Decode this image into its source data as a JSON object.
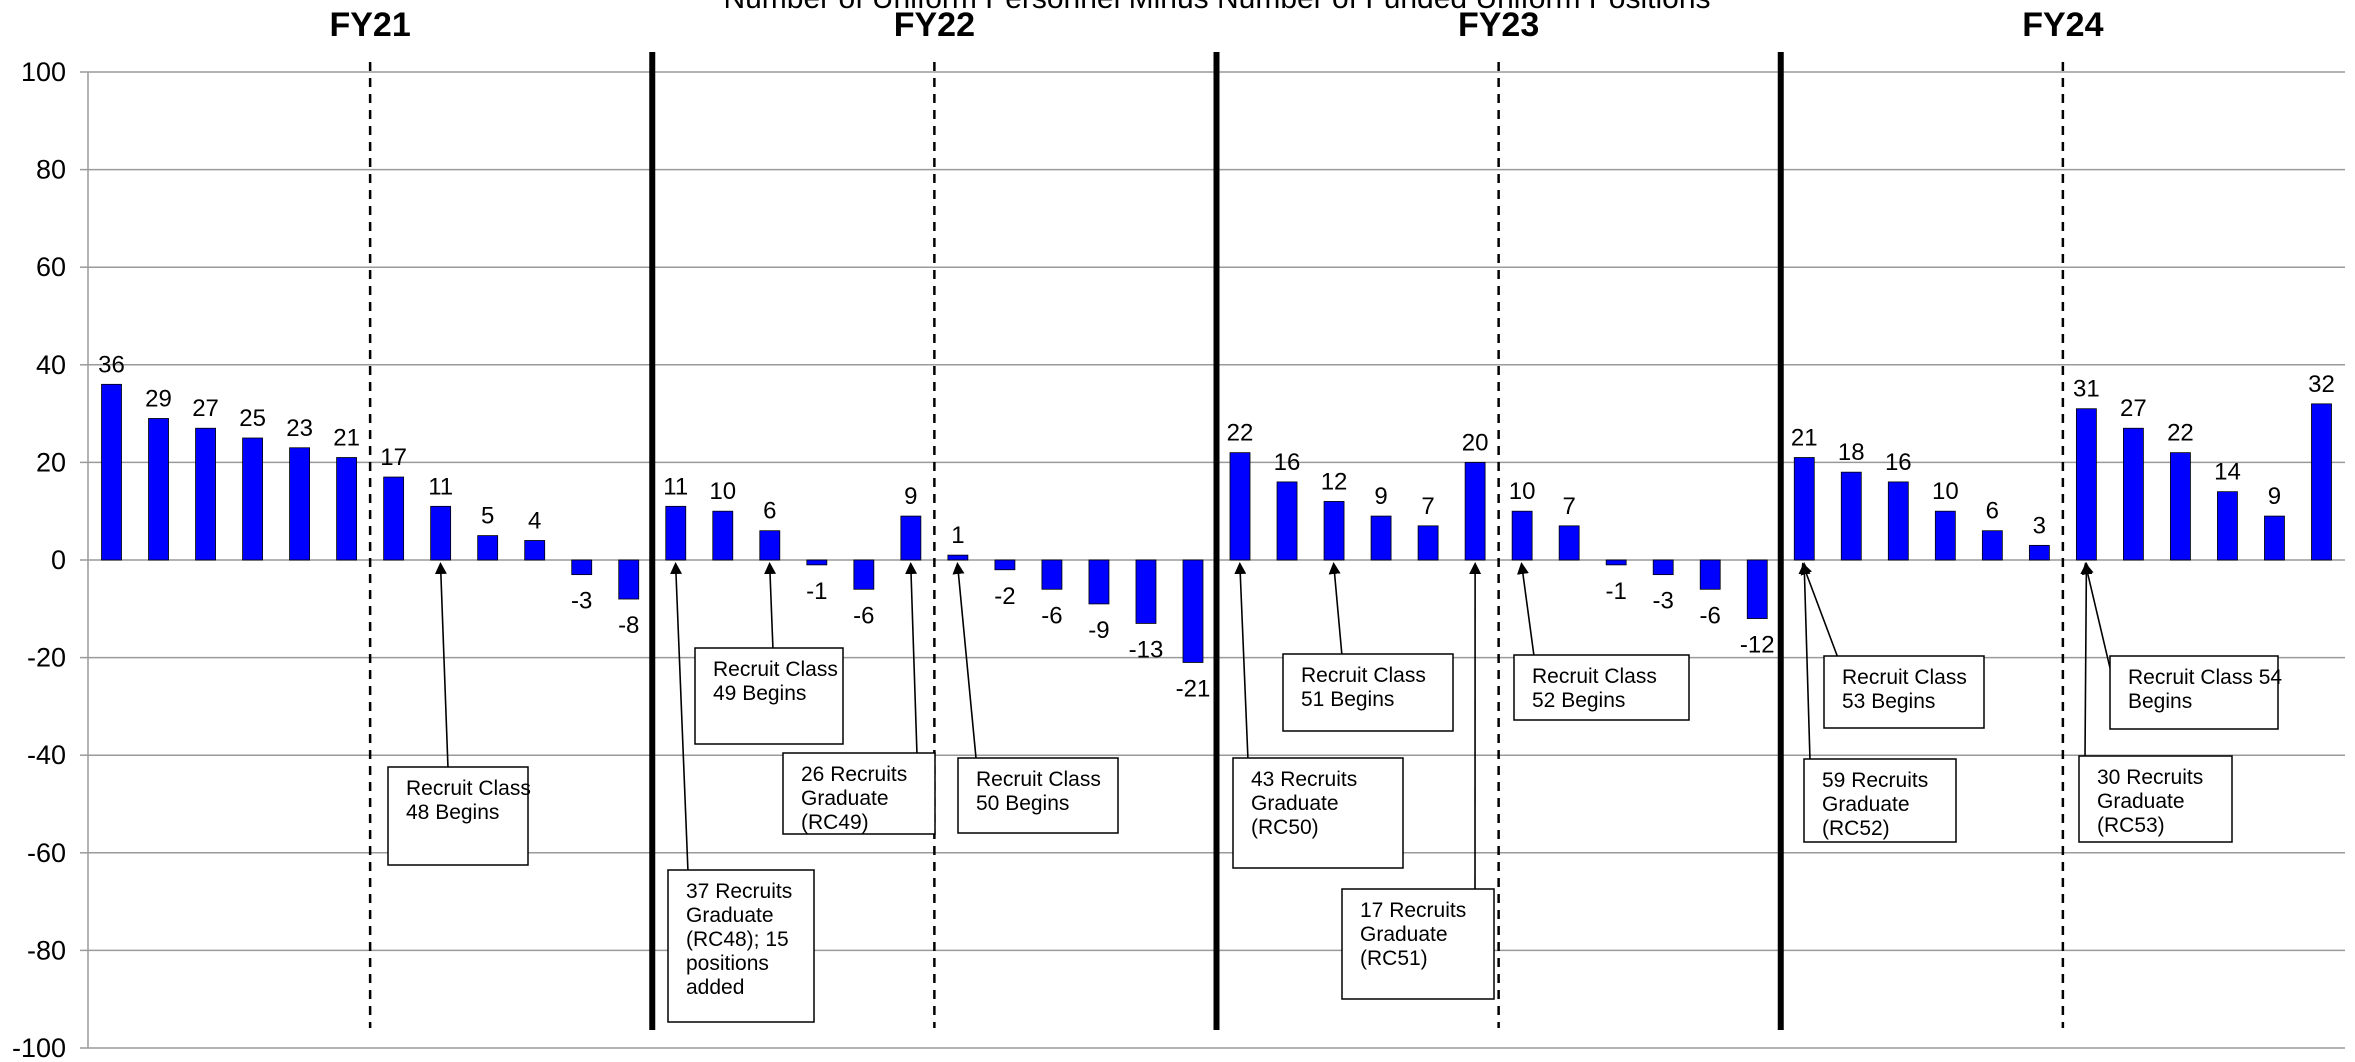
{
  "chart_data": {
    "type": "bar",
    "title": "Number of Uniform Personnel Minus Number of Funded Uniform Positions",
    "xlabel": "",
    "ylabel": "",
    "ylim": [
      -100,
      100
    ],
    "yticks": [
      -100,
      -80,
      -60,
      -40,
      -20,
      0,
      20,
      40,
      60,
      80,
      100
    ],
    "grid": true,
    "bar_color": "#0000ff",
    "fiscal_years": [
      "FY21",
      "FY22",
      "FY23",
      "FY24"
    ],
    "values": [
      36,
      29,
      27,
      25,
      23,
      21,
      17,
      11,
      5,
      4,
      -3,
      -8,
      11,
      10,
      6,
      -1,
      -6,
      9,
      1,
      -2,
      -6,
      -9,
      -13,
      -21,
      22,
      16,
      12,
      9,
      7,
      20,
      10,
      7,
      -1,
      -3,
      -6,
      -12,
      21,
      18,
      16,
      10,
      6,
      3,
      31,
      27,
      22,
      14,
      9,
      32
    ],
    "annotations": [
      {
        "lines": [
          "Recruit Class",
          "48 Begins"
        ],
        "bar_index": 7
      },
      {
        "lines": [
          "37 Recruits",
          "Graduate",
          "(RC48); 15",
          "positions",
          "added"
        ],
        "bar_index": 12
      },
      {
        "lines": [
          "Recruit Class",
          "49 Begins"
        ],
        "bar_index": 14
      },
      {
        "lines": [
          "26 Recruits",
          "Graduate",
          "(RC49)"
        ],
        "bar_index": 17
      },
      {
        "lines": [
          "Recruit Class",
          "50 Begins"
        ],
        "bar_index": 18
      },
      {
        "lines": [
          "43 Recruits",
          "Graduate",
          "(RC50)"
        ],
        "bar_index": 24
      },
      {
        "lines": [
          "Recruit Class",
          "51 Begins"
        ],
        "bar_index": 26
      },
      {
        "lines": [
          "17 Recruits",
          "Graduate",
          "(RC51)"
        ],
        "bar_index": 29
      },
      {
        "lines": [
          "Recruit Class",
          "52 Begins"
        ],
        "bar_index": 30
      },
      {
        "lines": [
          "Recruit Class",
          "53 Begins"
        ],
        "bar_index": 36
      },
      {
        "lines": [
          "59 Recruits",
          "Graduate",
          "(RC52)"
        ],
        "bar_index": 36
      },
      {
        "lines": [
          "Recruit Class 54",
          "Begins"
        ],
        "bar_index": 42
      },
      {
        "lines": [
          "30 Recruits",
          "Graduate",
          "(RC53)"
        ],
        "bar_index": 42
      }
    ]
  }
}
